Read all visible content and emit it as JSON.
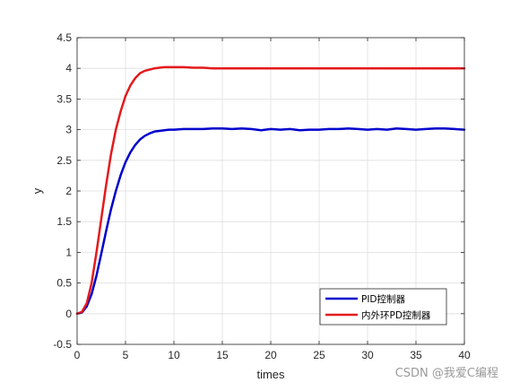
{
  "chart_data": {
    "type": "line",
    "xlabel": "times",
    "ylabel": "y",
    "xlim": [
      0,
      40
    ],
    "ylim": [
      -0.5,
      4.5
    ],
    "xticks": [
      "0",
      "5",
      "10",
      "15",
      "20",
      "25",
      "30",
      "35",
      "40"
    ],
    "yticks": [
      "-0.5",
      "0",
      "0.5",
      "1",
      "1.5",
      "2",
      "2.5",
      "3",
      "3.5",
      "4",
      "4.5"
    ],
    "grid": true,
    "legend_position": "bottom-right",
    "series": [
      {
        "name": "PID控制器",
        "color": "#0000cd",
        "x": [
          0,
          0.5,
          1,
          1.5,
          2,
          2.5,
          3,
          3.5,
          4,
          4.5,
          5,
          5.5,
          6,
          6.5,
          7,
          7.5,
          8,
          8.5,
          9,
          9.5,
          10,
          11,
          12,
          13,
          14,
          15,
          16,
          17,
          18,
          19,
          20,
          21,
          22,
          23,
          24,
          25,
          26,
          27,
          28,
          29,
          30,
          31,
          32,
          33,
          34,
          35,
          36,
          37,
          38,
          39,
          40
        ],
        "y": [
          0,
          0.02,
          0.12,
          0.32,
          0.62,
          0.98,
          1.35,
          1.7,
          2.0,
          2.26,
          2.47,
          2.63,
          2.75,
          2.84,
          2.9,
          2.94,
          2.97,
          2.98,
          2.99,
          3.0,
          3.0,
          3.01,
          3.01,
          3.01,
          3.02,
          3.02,
          3.01,
          3.02,
          3.01,
          2.99,
          3.01,
          3.0,
          3.01,
          2.99,
          3.0,
          3.0,
          3.01,
          3.01,
          3.02,
          3.01,
          3.0,
          3.01,
          3.0,
          3.02,
          3.01,
          3.0,
          3.01,
          3.02,
          3.02,
          3.01,
          3.0
        ]
      },
      {
        "name": "内外环PD控制器",
        "color": "#e41a1c",
        "x": [
          0,
          0.5,
          1,
          1.5,
          2,
          2.5,
          3,
          3.5,
          4,
          4.5,
          5,
          5.5,
          6,
          6.5,
          7,
          7.5,
          8,
          8.5,
          9,
          9.5,
          10,
          10.5,
          11,
          12,
          13,
          14,
          15,
          16,
          18,
          20,
          22,
          24,
          26,
          28,
          30,
          32,
          34,
          36,
          38,
          40
        ],
        "y": [
          0,
          0.03,
          0.17,
          0.5,
          1.0,
          1.55,
          2.1,
          2.6,
          3.0,
          3.3,
          3.55,
          3.72,
          3.84,
          3.92,
          3.96,
          3.98,
          4.0,
          4.01,
          4.02,
          4.02,
          4.02,
          4.02,
          4.02,
          4.01,
          4.01,
          4.0,
          4.0,
          4.0,
          4.0,
          4.0,
          4.0,
          4.0,
          4.0,
          4.0,
          4.0,
          4.0,
          4.0,
          4.0,
          4.0,
          4.0
        ]
      }
    ]
  },
  "watermark": "CSDN @我爱C编程"
}
